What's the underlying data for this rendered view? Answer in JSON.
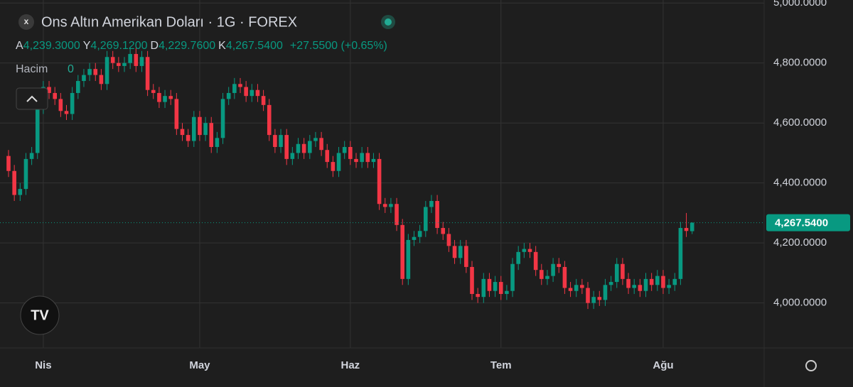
{
  "chart_data": {
    "type": "candlestick",
    "title": "Ons Altın Amerikan Doları · 1G · FOREX",
    "ohlc_legend": [
      {
        "key": "A",
        "value": "4,239.3000"
      },
      {
        "key": "Y",
        "value": "4,269.1200"
      },
      {
        "key": "D",
        "value": "4,229.7600"
      },
      {
        "key": "K",
        "value": "4,267.5400"
      }
    ],
    "change": "+27.5500 (+0.65%)",
    "volume_label": "Hacim",
    "volume_value": 0,
    "up_color": "#089981",
    "down_color": "#f23645",
    "grid": true,
    "ylim": [
      3850,
      5010
    ],
    "yticks": [
      {
        "value": 4000,
        "label": "4,000.0000"
      },
      {
        "value": 4200,
        "label": "4,200.0000"
      },
      {
        "value": 4400,
        "label": "4,400.0000"
      },
      {
        "value": 4600,
        "label": "4,600.0000"
      },
      {
        "value": 4800,
        "label": "4,800.0000"
      },
      {
        "value": 5000,
        "label": "5,000.0000"
      }
    ],
    "last_price": {
      "value": 4267.54,
      "label": "4,267.5400"
    },
    "categories": [
      null,
      null,
      null,
      null,
      null,
      null,
      "Nis",
      null,
      null,
      null,
      null,
      null,
      null,
      null,
      null,
      null,
      null,
      null,
      null,
      null,
      null,
      null,
      null,
      null,
      null,
      null,
      null,
      null,
      null,
      null,
      null,
      null,
      null,
      "May",
      null,
      null,
      null,
      null,
      null,
      null,
      null,
      null,
      null,
      null,
      null,
      null,
      null,
      null,
      null,
      null,
      null,
      null,
      null,
      null,
      null,
      null,
      null,
      null,
      null,
      "Haz",
      null,
      null,
      null,
      null,
      null,
      null,
      null,
      null,
      null,
      null,
      null,
      null,
      null,
      null,
      null,
      null,
      null,
      null,
      null,
      null,
      null,
      null,
      null,
      null,
      null,
      "Tem",
      null,
      null,
      null,
      null,
      null,
      null,
      null,
      null,
      null,
      null,
      null,
      null,
      null,
      null,
      null,
      null,
      null,
      null,
      null,
      null,
      null,
      null,
      null,
      null,
      null,
      null,
      null,
      "Ağu",
      null,
      null,
      null,
      null,
      null
    ],
    "open": [
      4490,
      4440,
      4360,
      4380,
      4480,
      4500,
      4650,
      4720,
      4700,
      4680,
      4640,
      4630,
      4700,
      4740,
      4760,
      4780,
      4760,
      4730,
      4820,
      4800,
      4790,
      4800,
      4830,
      4790,
      4820,
      4710,
      4700,
      4670,
      4690,
      4680,
      4580,
      4560,
      4540,
      4620,
      4560,
      4600,
      4520,
      4550,
      4680,
      4700,
      4730,
      4720,
      4690,
      4710,
      4690,
      4660,
      4560,
      4520,
      4560,
      4480,
      4500,
      4530,
      4500,
      4540,
      4550,
      4510,
      4470,
      4440,
      4500,
      4520,
      4480,
      4470,
      4500,
      4470,
      4480,
      4330,
      4320,
      4330,
      4260,
      4080,
      4210,
      4220,
      4240,
      4320,
      4340,
      4250,
      4230,
      4190,
      4150,
      4190,
      4120,
      4030,
      4020,
      4080,
      4040,
      4070,
      4030,
      4040,
      4130,
      4170,
      4180,
      4170,
      4110,
      4080,
      4090,
      4130,
      4120,
      4050,
      4040,
      4060,
      4050,
      4000,
      4020,
      4010,
      4060,
      4070,
      4130,
      4080,
      4050,
      4060,
      4040,
      4080,
      4060,
      4090,
      4050,
      4060,
      4080,
      4250,
      4239.3
    ],
    "high": [
      4510,
      4460,
      4400,
      4500,
      4520,
      4670,
      4740,
      4740,
      4720,
      4700,
      4660,
      4720,
      4760,
      4780,
      4800,
      4800,
      4780,
      4840,
      4840,
      4820,
      4820,
      4850,
      4850,
      4840,
      4840,
      4730,
      4720,
      4710,
      4710,
      4700,
      4600,
      4580,
      4640,
      4640,
      4620,
      4620,
      4570,
      4700,
      4720,
      4750,
      4750,
      4740,
      4730,
      4730,
      4710,
      4680,
      4580,
      4580,
      4580,
      4520,
      4550,
      4550,
      4560,
      4570,
      4570,
      4530,
      4490,
      4520,
      4540,
      4540,
      4500,
      4520,
      4520,
      4500,
      4500,
      4350,
      4350,
      4350,
      4280,
      4230,
      4240,
      4260,
      4340,
      4360,
      4360,
      4270,
      4250,
      4210,
      4210,
      4210,
      4140,
      4050,
      4100,
      4100,
      4090,
      4090,
      4060,
      4150,
      4190,
      4200,
      4200,
      4190,
      4130,
      4110,
      4150,
      4150,
      4140,
      4070,
      4080,
      4080,
      4070,
      4040,
      4040,
      4080,
      4090,
      4150,
      4150,
      4100,
      4080,
      4080,
      4100,
      4100,
      4110,
      4110,
      4080,
      4100,
      4270,
      4300,
      4269.12
    ],
    "low": [
      4420,
      4340,
      4340,
      4360,
      4460,
      4480,
      4630,
      4680,
      4660,
      4620,
      4610,
      4610,
      4680,
      4720,
      4740,
      4740,
      4710,
      4710,
      4780,
      4770,
      4770,
      4780,
      4770,
      4770,
      4690,
      4680,
      4650,
      4650,
      4660,
      4560,
      4540,
      4520,
      4520,
      4540,
      4540,
      4500,
      4500,
      4530,
      4660,
      4680,
      4700,
      4670,
      4670,
      4670,
      4640,
      4540,
      4500,
      4500,
      4460,
      4460,
      4480,
      4480,
      4480,
      4520,
      4490,
      4450,
      4420,
      4420,
      4480,
      4460,
      4450,
      4450,
      4450,
      4450,
      4310,
      4300,
      4300,
      4240,
      4060,
      4060,
      4190,
      4200,
      4220,
      4300,
      4230,
      4210,
      4170,
      4130,
      4130,
      4100,
      4010,
      4000,
      4000,
      4020,
      4020,
      4010,
      4010,
      4020,
      4110,
      4150,
      4150,
      4090,
      4060,
      4060,
      4070,
      4100,
      4030,
      4020,
      4020,
      4030,
      3980,
      3980,
      3990,
      3990,
      4040,
      4050,
      4060,
      4030,
      4030,
      4020,
      4020,
      4040,
      4040,
      4030,
      4030,
      4040,
      4060,
      4220,
      4229.76
    ],
    "close": [
      4440,
      4360,
      4380,
      4480,
      4500,
      4650,
      4720,
      4700,
      4680,
      4640,
      4630,
      4700,
      4740,
      4760,
      4780,
      4760,
      4730,
      4820,
      4800,
      4790,
      4800,
      4830,
      4790,
      4820,
      4710,
      4700,
      4670,
      4690,
      4680,
      4580,
      4560,
      4540,
      4620,
      4560,
      4600,
      4520,
      4550,
      4680,
      4700,
      4730,
      4720,
      4690,
      4710,
      4690,
      4660,
      4560,
      4520,
      4560,
      4480,
      4500,
      4530,
      4500,
      4540,
      4550,
      4510,
      4470,
      4440,
      4500,
      4520,
      4480,
      4470,
      4500,
      4470,
      4480,
      4330,
      4320,
      4330,
      4260,
      4080,
      4210,
      4220,
      4240,
      4320,
      4340,
      4250,
      4230,
      4190,
      4150,
      4190,
      4120,
      4030,
      4020,
      4080,
      4040,
      4070,
      4030,
      4040,
      4130,
      4170,
      4180,
      4170,
      4110,
      4080,
      4090,
      4130,
      4120,
      4050,
      4040,
      4060,
      4050,
      4000,
      4020,
      4010,
      4060,
      4070,
      4130,
      4080,
      4050,
      4060,
      4040,
      4080,
      4060,
      4090,
      4050,
      4060,
      4080,
      4250,
      4240,
      4267.54
    ]
  }
}
